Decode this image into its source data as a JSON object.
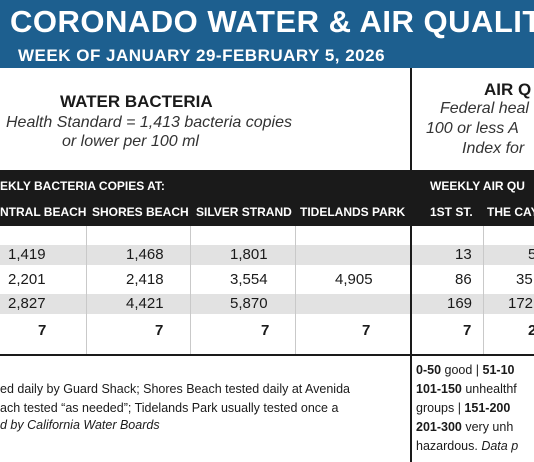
{
  "title": "CORONADO WATER & AIR QUALITY R",
  "subtitle": "WEEK OF JANUARY 29-FEBRUARY 5, 2026",
  "water": {
    "section_title": "WATER BACTERIA",
    "standard_line1": "Health Standard  = 1,413 bacteria copies",
    "standard_line2": "or lower per 100 ml",
    "bar_label": "EKLY BACTERIA COPIES AT:",
    "columns": [
      "NTRAL BEACH",
      "SHORES BEACH",
      "SILVER STRAND",
      "TIDELANDS PARK"
    ],
    "rows": [
      [
        "1,419",
        "1,468",
        "1,801",
        ""
      ],
      [
        "2,201",
        "2,418",
        "3,554",
        "4,905"
      ],
      [
        "2,827",
        "4,421",
        "5,870",
        ""
      ],
      [
        "7",
        "7",
        "7",
        "7"
      ]
    ],
    "footnote_line1": "ed daily by Guard Shack; Shores Beach tested daily at Avenida",
    "footnote_line2": "ach tested “as needed”; Tidelands Park usually tested once a",
    "footnote_line3": "d by California Water Boards"
  },
  "air": {
    "section_title": "AIR Q",
    "standard_line1": "Federal heal",
    "standard_line2": "100 or less A",
    "standard_line3": "Index for",
    "bar_label": "WEEKLY AIR QU",
    "columns": [
      "1ST ST.",
      "THE CAY"
    ],
    "rows": [
      [
        "13",
        "5"
      ],
      [
        "86",
        "35"
      ],
      [
        "169",
        "172"
      ],
      [
        "7",
        "2"
      ]
    ],
    "legend_line1_a": "0-50",
    "legend_line1_b": " good | ",
    "legend_line1_c": "51-10",
    "legend_line2_a": "101-150",
    "legend_line2_b": " unhealthf",
    "legend_line3_a": "groups | ",
    "legend_line3_b": "151-200",
    "legend_line4_a": "201-300",
    "legend_line4_b": " very unh",
    "legend_line5_a": "hazardous. ",
    "legend_line5_b": "Data p"
  },
  "colors": {
    "title_band": "#1d5f8f",
    "header_bar": "#1a1a1a",
    "row_shade": "#e2e2e2"
  }
}
